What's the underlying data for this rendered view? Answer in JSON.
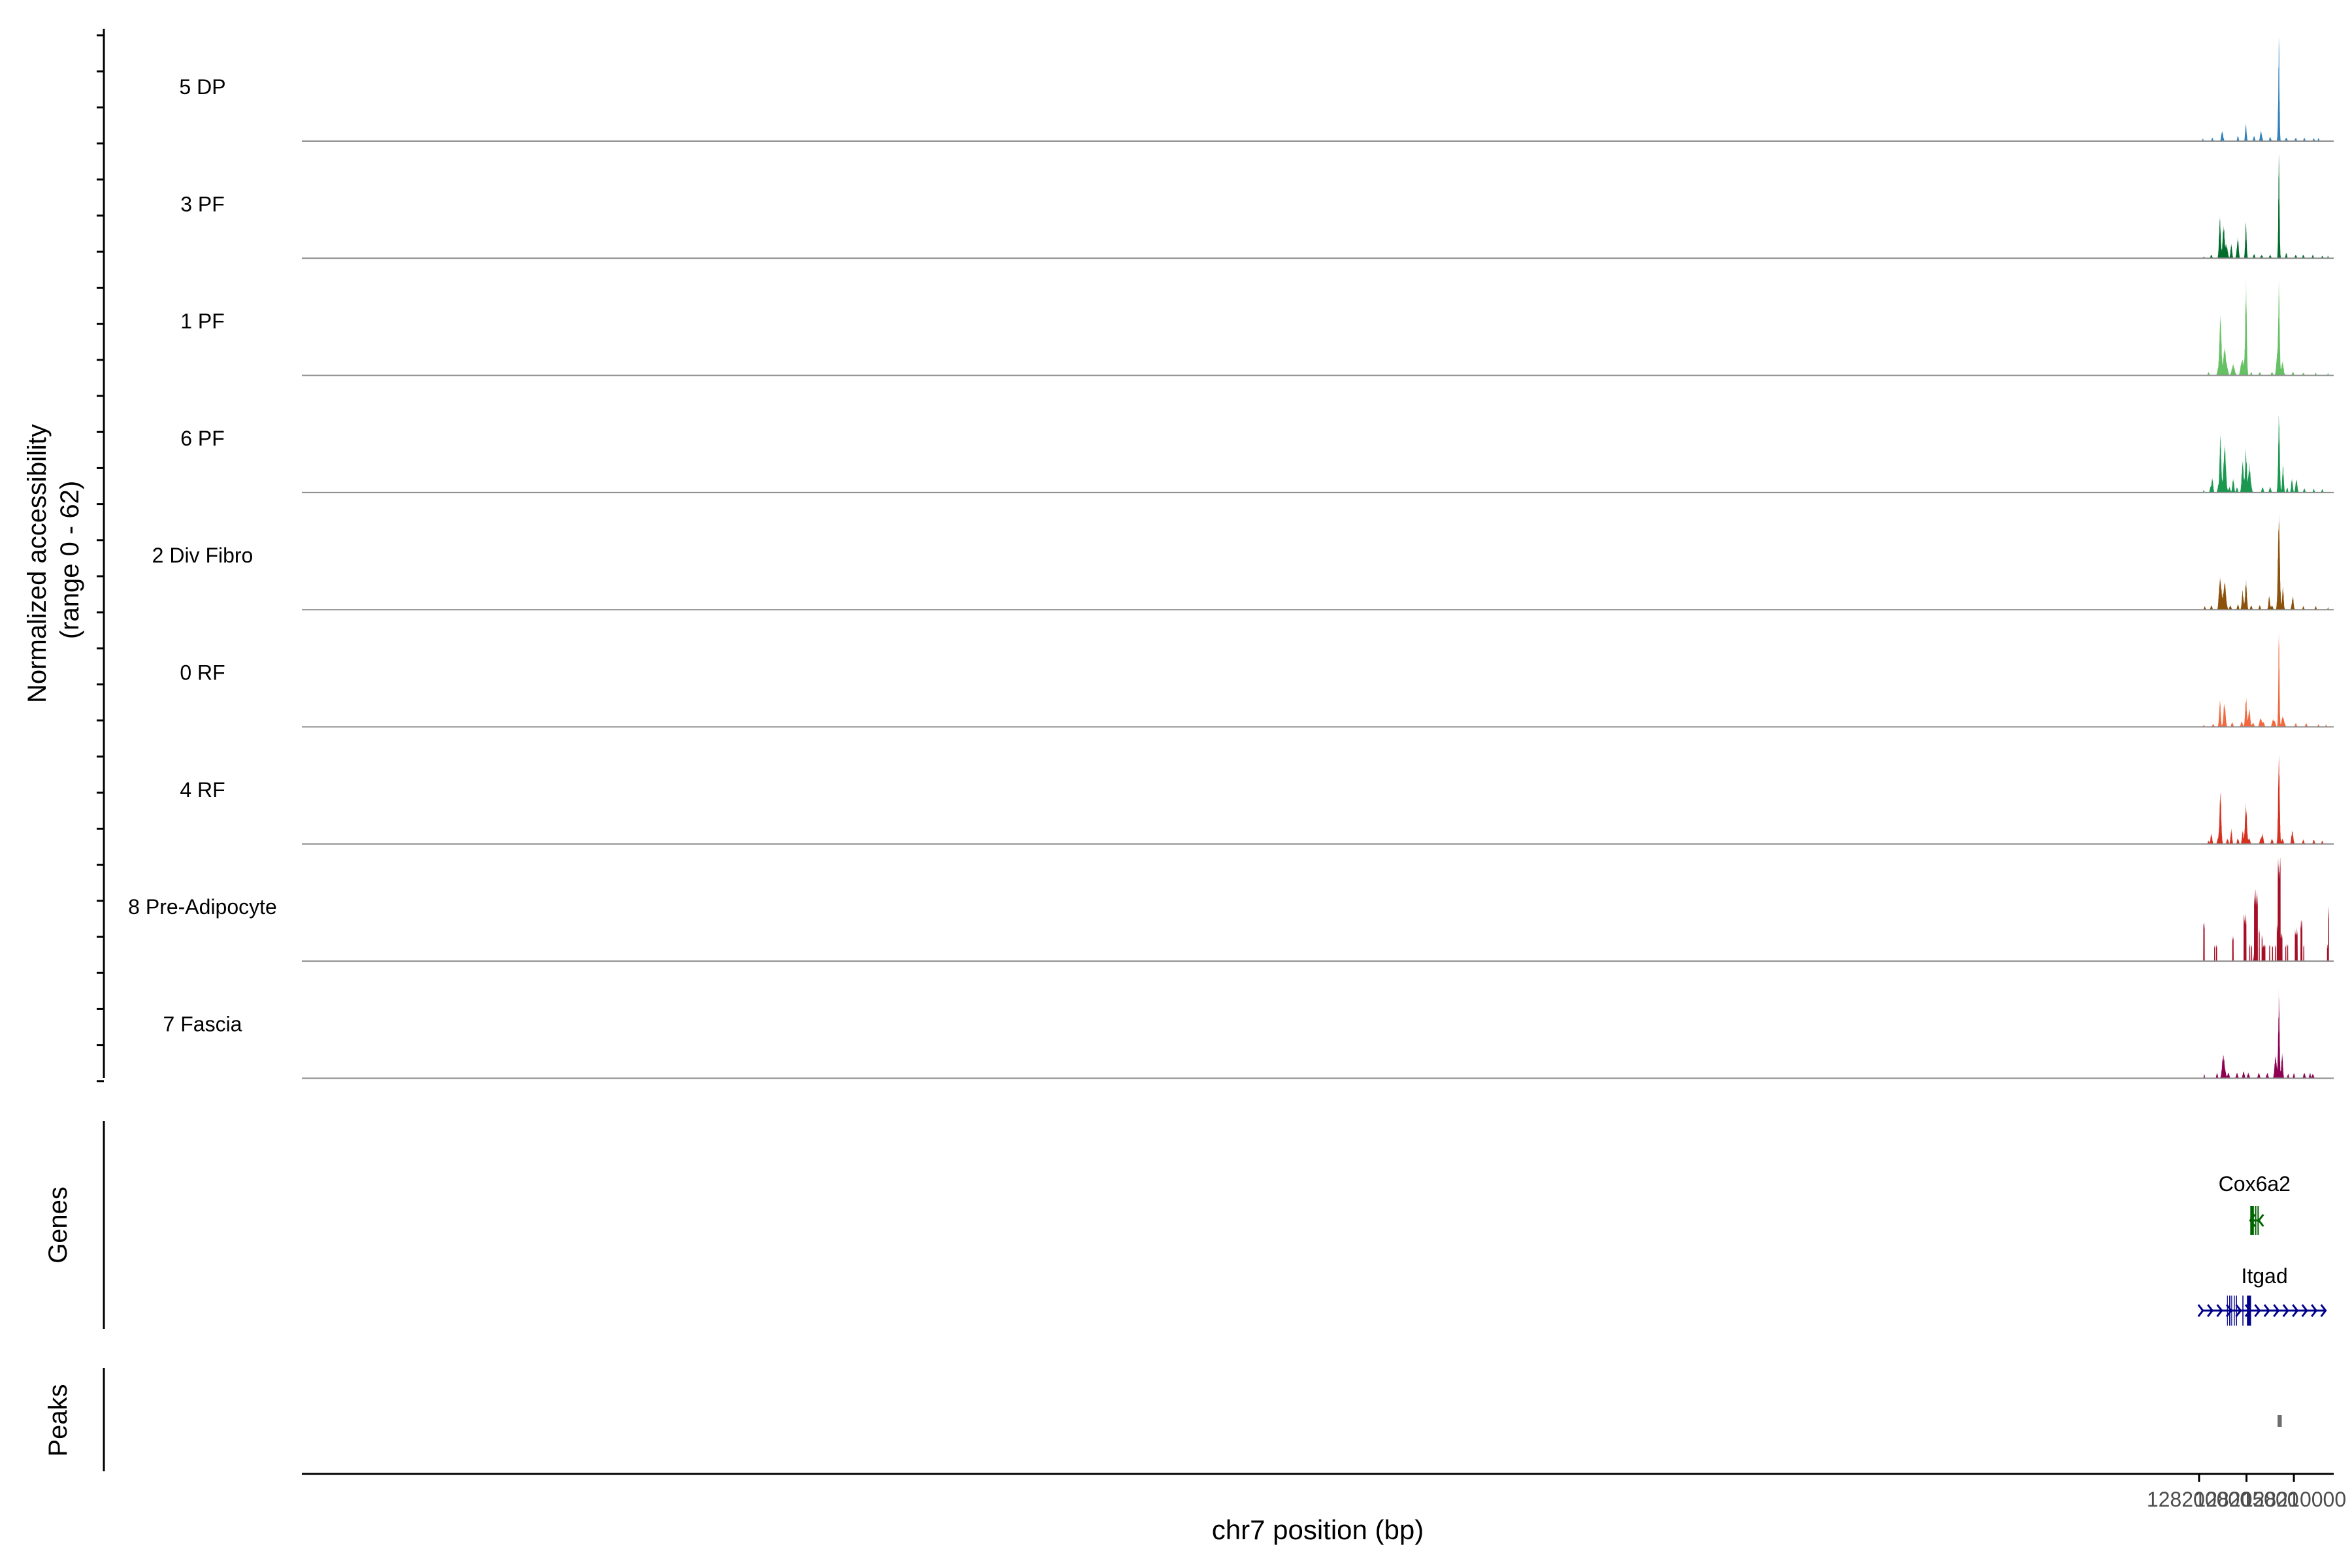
{
  "chart_data": {
    "type": "area",
    "title": "",
    "ylabel": "Normalized accessibility\n(range 0 - 62)",
    "xlabel": "chr7 position (bp)",
    "xlim": [
      127999900,
      128214200
    ],
    "x_ticks": [
      128200000,
      128205000,
      128210000
    ],
    "x_tick_labels": [
      "128200000",
      "128205000",
      "128210000"
    ],
    "ylim": [
      0,
      62
    ],
    "series": [
      {
        "name": "5 DP",
        "color": "#3182BD",
        "base": [
          [
            200400,
            1.5,
            120
          ],
          [
            201400,
            2,
            160
          ],
          [
            202500,
            2.5,
            200
          ],
          [
            204100,
            3,
            150
          ],
          [
            204900,
            3.5,
            120
          ],
          [
            205800,
            3,
            180
          ],
          [
            206600,
            2.5,
            200
          ],
          [
            207500,
            2.5,
            180
          ],
          [
            208300,
            3,
            120
          ],
          [
            209200,
            2,
            200
          ],
          [
            210200,
            2,
            180
          ],
          [
            211100,
            2,
            160
          ],
          [
            212100,
            1.5,
            180
          ],
          [
            212600,
            2,
            120
          ]
        ],
        "peaks": [
          [
            208420,
            56,
            60
          ],
          [
            202400,
            4,
            80
          ],
          [
            204950,
            8,
            70
          ],
          [
            206500,
            4,
            80
          ]
        ]
      },
      {
        "name": "3 PF",
        "color": "#006D2C",
        "base": [
          [
            200500,
            1,
            120
          ],
          [
            201300,
            2,
            180
          ],
          [
            202500,
            3,
            180
          ],
          [
            204000,
            3,
            200
          ],
          [
            204900,
            3,
            150
          ],
          [
            205800,
            2.5,
            180
          ],
          [
            206600,
            2,
            200
          ],
          [
            207500,
            2,
            180
          ],
          [
            208500,
            2.5,
            150
          ],
          [
            209200,
            3,
            160
          ],
          [
            210200,
            2,
            180
          ],
          [
            211000,
            2,
            180
          ],
          [
            212000,
            2,
            160
          ],
          [
            213000,
            1.5,
            150
          ],
          [
            213600,
            1.5,
            100
          ]
        ],
        "peaks": [
          [
            208420,
            56,
            60
          ],
          [
            202200,
            22,
            90
          ],
          [
            202600,
            16,
            100
          ],
          [
            204950,
            18,
            70
          ],
          [
            204100,
            10,
            80
          ],
          [
            203400,
            8,
            80
          ],
          [
            202900,
            7,
            120
          ]
        ]
      },
      {
        "name": "1 PF",
        "color": "#66C164",
        "base": [
          [
            201000,
            2,
            150
          ],
          [
            202000,
            3,
            200
          ],
          [
            203000,
            2.5,
            200
          ],
          [
            204400,
            3,
            180
          ],
          [
            205500,
            2,
            150
          ],
          [
            206400,
            2,
            180
          ],
          [
            207700,
            2,
            200
          ],
          [
            208800,
            2,
            150
          ],
          [
            209900,
            2,
            180
          ],
          [
            211000,
            1.5,
            180
          ],
          [
            212300,
            1.5,
            150
          ],
          [
            213600,
            1.5,
            100
          ]
        ],
        "peaks": [
          [
            208420,
            50,
            80
          ],
          [
            204950,
            50,
            80
          ],
          [
            202250,
            34,
            100
          ],
          [
            202700,
            15,
            150
          ],
          [
            203600,
            6,
            150
          ],
          [
            204600,
            8,
            150
          ],
          [
            208200,
            10,
            80
          ],
          [
            208800,
            6,
            120
          ]
        ]
      },
      {
        "name": "6 PF",
        "color": "#1A9850",
        "base": [
          [
            200500,
            1.5,
            100
          ],
          [
            201200,
            3,
            150
          ],
          [
            202000,
            3,
            150
          ],
          [
            203200,
            3,
            200
          ],
          [
            204000,
            3,
            180
          ],
          [
            205500,
            3,
            200
          ],
          [
            206700,
            3,
            200
          ],
          [
            207500,
            3,
            200
          ],
          [
            208500,
            3,
            150
          ],
          [
            209300,
            3,
            150
          ],
          [
            210200,
            3,
            180
          ],
          [
            211100,
            2.5,
            180
          ],
          [
            212100,
            2,
            160
          ],
          [
            213000,
            2,
            150
          ]
        ],
        "peaks": [
          [
            208420,
            40,
            80
          ],
          [
            202250,
            32,
            90
          ],
          [
            202700,
            26,
            130
          ],
          [
            204950,
            24,
            90
          ],
          [
            204600,
            18,
            100
          ],
          [
            205300,
            16,
            100
          ],
          [
            208850,
            15,
            80
          ],
          [
            201400,
            8,
            80
          ],
          [
            203600,
            8,
            90
          ],
          [
            209800,
            8,
            80
          ],
          [
            210300,
            6,
            80
          ]
        ]
      },
      {
        "name": "2 Div Fibro",
        "color": "#8C510A",
        "base": [
          [
            200600,
            2,
            150
          ],
          [
            201300,
            2.5,
            180
          ],
          [
            202100,
            3,
            150
          ],
          [
            203300,
            2.5,
            200
          ],
          [
            204100,
            3,
            180
          ],
          [
            205500,
            2.5,
            180
          ],
          [
            206400,
            2.5,
            180
          ],
          [
            207700,
            2.5,
            200
          ],
          [
            208800,
            2.5,
            150
          ],
          [
            209800,
            2.5,
            180
          ],
          [
            211000,
            2,
            160
          ],
          [
            212300,
            2,
            150
          ],
          [
            213600,
            1.5,
            80
          ]
        ],
        "peaks": [
          [
            208420,
            52,
            100
          ],
          [
            202250,
            18,
            120
          ],
          [
            202700,
            15,
            140
          ],
          [
            204950,
            16,
            90
          ],
          [
            204600,
            10,
            90
          ],
          [
            207400,
            8,
            80
          ],
          [
            208850,
            10,
            80
          ],
          [
            209900,
            6,
            80
          ]
        ]
      },
      {
        "name": "0 RF",
        "color": "#F16A3F",
        "base": [
          [
            200500,
            1,
            150
          ],
          [
            201500,
            1.5,
            200
          ],
          [
            202600,
            2.5,
            200
          ],
          [
            203500,
            2.5,
            200
          ],
          [
            204500,
            3,
            200
          ],
          [
            205700,
            2.5,
            200
          ],
          [
            206800,
            2.5,
            200
          ],
          [
            208000,
            2.5,
            200
          ],
          [
            209000,
            2,
            200
          ],
          [
            210200,
            2,
            180
          ],
          [
            211300,
            2,
            180
          ],
          [
            212600,
            1.5,
            150
          ],
          [
            213400,
            1.5,
            100
          ]
        ],
        "peaks": [
          [
            208420,
            54,
            60
          ],
          [
            202200,
            14,
            80
          ],
          [
            202700,
            12,
            100
          ],
          [
            204950,
            16,
            90
          ],
          [
            205300,
            10,
            100
          ],
          [
            206500,
            5,
            120
          ],
          [
            208800,
            6,
            100
          ],
          [
            207800,
            4,
            100
          ]
        ]
      },
      {
        "name": "4 RF",
        "color": "#D7301F",
        "base": [
          [
            201000,
            2,
            150
          ],
          [
            202000,
            3,
            200
          ],
          [
            203000,
            3,
            200
          ],
          [
            204100,
            3,
            200
          ],
          [
            205300,
            3,
            200
          ],
          [
            206500,
            3,
            200
          ],
          [
            207700,
            3,
            200
          ],
          [
            208800,
            3,
            200
          ],
          [
            209900,
            3,
            200
          ],
          [
            211000,
            2.5,
            180
          ],
          [
            212100,
            2.5,
            180
          ],
          [
            213000,
            2,
            150
          ]
        ],
        "peaks": [
          [
            208420,
            48,
            80
          ],
          [
            202250,
            30,
            90
          ],
          [
            204950,
            22,
            100
          ],
          [
            203400,
            8,
            80
          ],
          [
            204600,
            7,
            80
          ],
          [
            206700,
            6,
            80
          ],
          [
            209800,
            6,
            80
          ],
          [
            201300,
            6,
            80
          ]
        ]
      },
      {
        "name": "8 Pre-Adipocyte",
        "color": "#A50F26",
        "blocks": [
          [
            200450,
            200600,
            22
          ],
          [
            201600,
            201700,
            9
          ],
          [
            201800,
            201900,
            9
          ],
          [
            203500,
            203650,
            14
          ],
          [
            204700,
            205000,
            25
          ],
          [
            205300,
            205400,
            9
          ],
          [
            205500,
            205600,
            9
          ],
          [
            205800,
            206200,
            38
          ],
          [
            206300,
            206400,
            18
          ],
          [
            206600,
            206700,
            14
          ],
          [
            206700,
            207000,
            9
          ],
          [
            207400,
            207500,
            9
          ],
          [
            207700,
            207800,
            9
          ],
          [
            208000,
            208100,
            9
          ],
          [
            208200,
            208300,
            20
          ],
          [
            208300,
            208600,
            58
          ],
          [
            208600,
            208800,
            15
          ],
          [
            209100,
            209200,
            9
          ],
          [
            209300,
            209400,
            9
          ],
          [
            210100,
            210400,
            18
          ],
          [
            210700,
            210900,
            22
          ],
          [
            211000,
            211100,
            9
          ],
          [
            213500,
            213600,
            9
          ],
          [
            213600,
            213700,
            30
          ]
        ],
        "peaks": [
          [
            205900,
            12,
            80
          ],
          [
            208400,
            8,
            50
          ]
        ]
      },
      {
        "name": "7 Fascia",
        "color": "#8E0152",
        "base": [
          [
            200550,
            2.5,
            100
          ],
          [
            201900,
            3,
            150
          ],
          [
            202500,
            4,
            200
          ],
          [
            203100,
            3,
            200
          ],
          [
            204000,
            3,
            200
          ],
          [
            204700,
            4,
            200
          ],
          [
            205200,
            3,
            200
          ],
          [
            206300,
            3,
            200
          ],
          [
            207200,
            3,
            200
          ],
          [
            208000,
            4,
            200
          ],
          [
            208800,
            3,
            150
          ],
          [
            209400,
            2.5,
            150
          ],
          [
            210000,
            3,
            150
          ],
          [
            211100,
            3,
            200
          ],
          [
            211700,
            3,
            150
          ],
          [
            212000,
            2.5,
            200
          ]
        ],
        "peaks": [
          [
            208420,
            48,
            70
          ],
          [
            208100,
            10,
            100
          ],
          [
            208750,
            12,
            80
          ],
          [
            202600,
            10,
            150
          ]
        ]
      }
    ],
    "genes": [
      {
        "name": "Cox6a2",
        "color": "#006400",
        "strand": "-",
        "start": 205400,
        "end": 206300,
        "exons": [
          [
            205400,
            205780
          ],
          [
            205900,
            206040
          ],
          [
            206160,
            206300
          ]
        ]
      },
      {
        "name": "Itgad",
        "color": "#00008B",
        "strand": "+",
        "start": 200400,
        "end": 213350,
        "exons": [
          [
            202950,
            203030
          ],
          [
            203180,
            203300
          ],
          [
            203400,
            203480
          ],
          [
            203660,
            203760
          ],
          [
            203900,
            204000
          ],
          [
            204570,
            204680
          ],
          [
            205050,
            205480
          ]
        ]
      }
    ],
    "peaks_track": [
      [
        208280,
        208720
      ]
    ],
    "panel_labels": [
      "Genes",
      "Peaks"
    ]
  }
}
